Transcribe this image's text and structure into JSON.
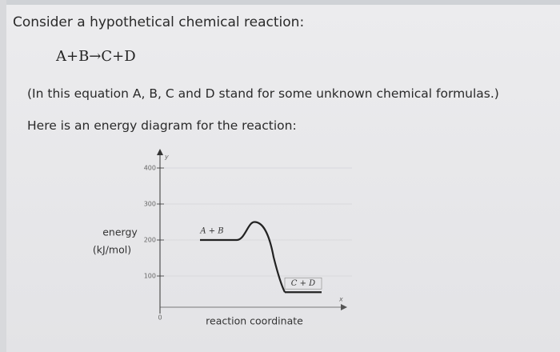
{
  "heading": "Consider a hypothetical chemical reaction:",
  "equation": "A+B→C+D",
  "note": "(In this equation A, B, C and D stand for some unknown chemical formulas.)",
  "intro": "Here is an energy diagram for the reaction:",
  "diagram": {
    "ylabel": [
      "energy",
      "(kJ/mol)"
    ],
    "xlabel": "reaction coordinate",
    "y_axis_letter": "y",
    "x_axis_letter": "x",
    "origin_label": 0,
    "ylim": [
      0,
      440
    ],
    "yticks": [
      100,
      200,
      300,
      400
    ],
    "reactants": {
      "label": "A + B",
      "energy": 200
    },
    "peak": 250,
    "products": {
      "label": "C + D",
      "energy": 55
    }
  }
}
